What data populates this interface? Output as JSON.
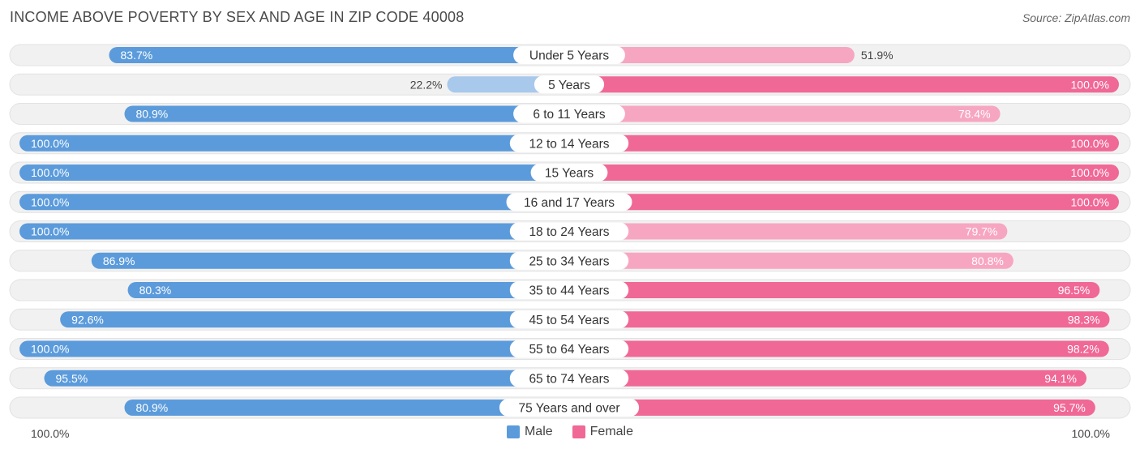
{
  "header": {
    "title": "INCOME ABOVE POVERTY BY SEX AND AGE IN ZIP CODE 40008",
    "source": "Source: ZipAtlas.com"
  },
  "colors": {
    "male_strong": "#5b9bdb",
    "male_light": "#a8c8ec",
    "female_strong": "#f06895",
    "female_light": "#f7a6c1",
    "row_bg": "#f1f1f1"
  },
  "axis": {
    "left_label": "100.0%",
    "right_label": "100.0%"
  },
  "legend": {
    "male_label": "Male",
    "female_label": "Female"
  },
  "chart_data": {
    "type": "bar",
    "orientation": "diverging-horizontal",
    "title": "INCOME ABOVE POVERTY BY SEX AND AGE IN ZIP CODE 40008",
    "xlim": [
      0,
      100
    ],
    "categories": [
      "Under 5 Years",
      "5 Years",
      "6 to 11 Years",
      "12 to 14 Years",
      "15 Years",
      "16 and 17 Years",
      "18 to 24 Years",
      "25 to 34 Years",
      "35 to 44 Years",
      "45 to 54 Years",
      "55 to 64 Years",
      "65 to 74 Years",
      "75 Years and over"
    ],
    "series": [
      {
        "name": "Male",
        "values": [
          83.7,
          22.2,
          80.9,
          100.0,
          100.0,
          100.0,
          100.0,
          86.9,
          80.3,
          92.6,
          100.0,
          95.5,
          80.9
        ],
        "labels": [
          "83.7%",
          "22.2%",
          "80.9%",
          "100.0%",
          "100.0%",
          "100.0%",
          "100.0%",
          "86.9%",
          "80.3%",
          "92.6%",
          "100.0%",
          "95.5%",
          "80.9%"
        ]
      },
      {
        "name": "Female",
        "values": [
          51.9,
          100.0,
          78.4,
          100.0,
          100.0,
          100.0,
          79.7,
          80.8,
          96.5,
          98.3,
          98.2,
          94.1,
          95.7
        ],
        "labels": [
          "51.9%",
          "100.0%",
          "78.4%",
          "100.0%",
          "100.0%",
          "100.0%",
          "79.7%",
          "80.8%",
          "96.5%",
          "98.3%",
          "98.2%",
          "94.1%",
          "95.7%"
        ]
      }
    ]
  }
}
